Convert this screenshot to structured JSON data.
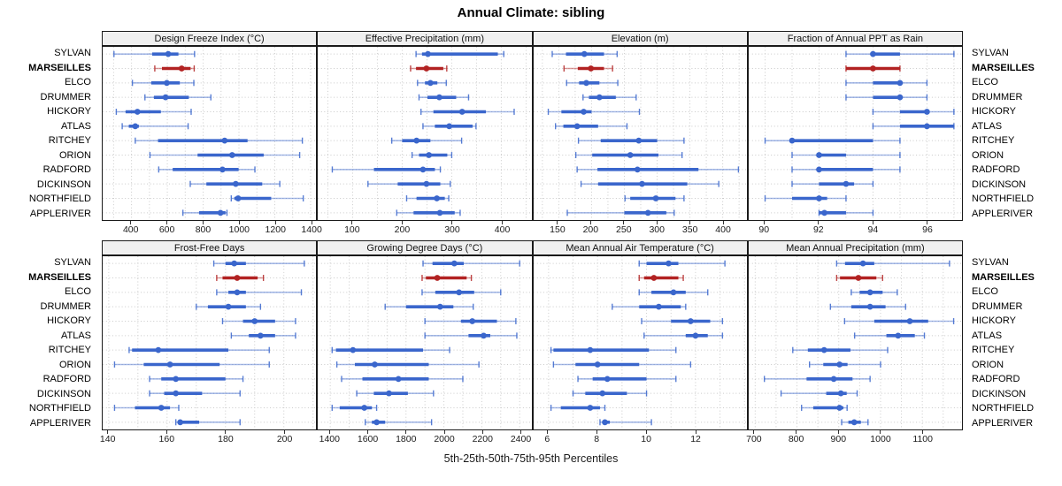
{
  "title": "Annual Climate: sibling",
  "caption": "5th-25th-50th-75th-95th Percentiles",
  "colors": {
    "series": "#3A66CC",
    "highlight": "#B22222",
    "grid": "#C9C9C9",
    "strip_bg": "#F0F0F0",
    "border": "#1A1A1A",
    "tick_text": "#1A1A1A"
  },
  "chart_data": {
    "type": "scatter",
    "style": "horizontal-percentile-dotplot",
    "percentiles": [
      5,
      25,
      50,
      75,
      95
    ],
    "legend": "5th-25th-50th-75th-95th Percentiles",
    "sites": [
      "SYLVAN",
      "MARSEILLES",
      "ELCO",
      "DRUMMER",
      "HICKORY",
      "ATLAS",
      "RITCHEY",
      "ORION",
      "RADFORD",
      "DICKINSON",
      "NORTHFIELD",
      "APPLERIVER"
    ],
    "highlight_site": "MARSEILLES",
    "panels": [
      {
        "title": "Design Freeze Index (°C)",
        "row": 0,
        "col": 0,
        "xlim": [
          240,
          1430
        ],
        "ticks": [
          400,
          600,
          800,
          1000,
          1200,
          1400
        ],
        "grid_step": 100,
        "values": [
          [
            302,
            515,
            605,
            662,
            752
          ],
          [
            530,
            570,
            680,
            730,
            750
          ],
          [
            405,
            510,
            597,
            670,
            748
          ],
          [
            475,
            525,
            590,
            720,
            843
          ],
          [
            315,
            367,
            433,
            564,
            733
          ],
          [
            348,
            385,
            421,
            441,
            716
          ],
          [
            421,
            548,
            920,
            1048,
            1354
          ],
          [
            503,
            769,
            962,
            1138,
            1339
          ],
          [
            552,
            630,
            908,
            998,
            1089
          ],
          [
            728,
            818,
            982,
            1130,
            1228
          ],
          [
            957,
            974,
            995,
            1180,
            1359
          ],
          [
            687,
            777,
            897,
            925,
            933
          ]
        ]
      },
      {
        "title": "Effective Precipitation (mm)",
        "row": 0,
        "col": 1,
        "xlim": [
          30,
          460
        ],
        "ticks": [
          100,
          200,
          300,
          400
        ],
        "grid_step": 50,
        "values": [
          [
            228,
            240,
            252,
            393,
            405
          ],
          [
            217,
            228,
            249,
            283,
            290
          ],
          [
            231,
            246,
            257,
            271,
            289
          ],
          [
            234,
            251,
            275,
            309,
            334
          ],
          [
            238,
            263,
            321,
            369,
            426
          ],
          [
            242,
            266,
            295,
            342,
            349
          ],
          [
            179,
            200,
            229,
            257,
            320
          ],
          [
            220,
            234,
            254,
            291,
            300
          ],
          [
            59,
            143,
            242,
            266,
            277
          ],
          [
            131,
            191,
            249,
            277,
            297
          ],
          [
            209,
            229,
            270,
            286,
            294
          ],
          [
            189,
            223,
            276,
            306,
            317
          ]
        ]
      },
      {
        "title": "Elevation (m)",
        "row": 0,
        "col": 2,
        "xlim": [
          112,
          437
        ],
        "ticks": [
          150,
          200,
          250,
          300,
          350,
          400
        ],
        "grid_step": 25,
        "values": [
          [
            140,
            161,
            189,
            219,
            239
          ],
          [
            158,
            179,
            199,
            219,
            232
          ],
          [
            162,
            181,
            192,
            212,
            240
          ],
          [
            187,
            196,
            212,
            237,
            268
          ],
          [
            134,
            154,
            188,
            200,
            273
          ],
          [
            145,
            157,
            178,
            210,
            254
          ],
          [
            180,
            214,
            272,
            300,
            341
          ],
          [
            176,
            201,
            259,
            302,
            338
          ],
          [
            178,
            209,
            270,
            363,
            424
          ],
          [
            184,
            210,
            277,
            346,
            394
          ],
          [
            251,
            259,
            298,
            328,
            341
          ],
          [
            163,
            250,
            286,
            314,
            326
          ]
        ]
      },
      {
        "title": "Fraction of Annual PPT as Rain",
        "row": 0,
        "col": 3,
        "xlim": [
          89.4,
          97.3
        ],
        "ticks": [
          90,
          92,
          94,
          96
        ],
        "grid_step": 1,
        "values": [
          [
            93,
            94,
            94,
            95,
            97
          ],
          [
            93,
            93,
            94,
            95,
            95
          ],
          [
            93,
            94,
            95,
            95,
            96
          ],
          [
            93,
            94,
            95,
            95,
            96
          ],
          [
            94,
            95,
            96,
            96,
            97
          ],
          [
            94,
            95,
            96,
            97,
            97
          ],
          [
            90,
            91,
            91,
            94,
            95
          ],
          [
            91,
            92,
            92,
            93,
            95
          ],
          [
            91,
            92,
            92,
            94,
            95
          ],
          [
            91,
            92,
            93,
            93.3,
            94
          ],
          [
            90,
            91,
            92,
            92.3,
            93
          ],
          [
            92,
            92,
            92.2,
            93,
            94
          ]
        ]
      },
      {
        "title": "Frost-Free Days",
        "row": 1,
        "col": 0,
        "xlim": [
          138,
          211
        ],
        "ticks": [
          140,
          160,
          180,
          200
        ],
        "grid_step": 10,
        "values": [
          [
            176,
            180,
            183,
            187,
            207
          ],
          [
            177,
            179,
            184,
            191,
            193
          ],
          [
            177,
            181,
            184,
            187,
            206
          ],
          [
            170,
            174,
            181,
            187,
            192
          ],
          [
            179,
            186,
            190,
            197,
            204
          ],
          [
            182,
            188,
            192,
            197,
            204
          ],
          [
            147,
            148,
            157,
            181,
            195
          ],
          [
            142,
            152,
            161,
            178,
            195
          ],
          [
            154,
            158,
            163,
            180,
            186
          ],
          [
            154,
            159,
            163,
            172,
            185
          ],
          [
            142,
            149,
            158,
            161,
            164
          ],
          [
            163,
            164,
            164.5,
            171,
            185
          ]
        ]
      },
      {
        "title": "Growing Degree Days (°C)",
        "row": 1,
        "col": 1,
        "xlim": [
          1335,
          2460
        ],
        "ticks": [
          1400,
          1600,
          1800,
          2000,
          2200,
          2400
        ],
        "grid_step": 100,
        "values": [
          [
            1890,
            1940,
            2055,
            2105,
            2400
          ],
          [
            1885,
            1905,
            1965,
            2120,
            2145
          ],
          [
            1885,
            1955,
            2080,
            2160,
            2300
          ],
          [
            1690,
            1800,
            1980,
            2050,
            2155
          ],
          [
            1900,
            2090,
            2150,
            2280,
            2380
          ],
          [
            1900,
            2130,
            2210,
            2245,
            2385
          ],
          [
            1410,
            1430,
            1520,
            1890,
            2030
          ],
          [
            1435,
            1530,
            1635,
            1920,
            2185
          ],
          [
            1460,
            1570,
            1760,
            1920,
            2100
          ],
          [
            1540,
            1630,
            1710,
            1810,
            1945
          ],
          [
            1410,
            1450,
            1580,
            1620,
            1645
          ],
          [
            1585,
            1620,
            1645,
            1690,
            1935
          ]
        ]
      },
      {
        "title": "Mean Annual Air Temperature (°C)",
        "row": 1,
        "col": 2,
        "xlim": [
          5.4,
          14.1
        ],
        "ticks": [
          6,
          8,
          10,
          12
        ],
        "grid_step": 1,
        "values": [
          [
            9.7,
            10.0,
            10.9,
            11.3,
            13.2
          ],
          [
            9.7,
            9.9,
            10.3,
            11.3,
            11.5
          ],
          [
            9.7,
            10.2,
            11.1,
            11.6,
            12.5
          ],
          [
            8.6,
            9.7,
            10.5,
            11.4,
            11.6
          ],
          [
            9.8,
            11.0,
            11.8,
            12.6,
            13.1
          ],
          [
            9.9,
            11.6,
            12.0,
            12.5,
            13.1
          ],
          [
            6.1,
            6.2,
            7.7,
            10.1,
            11.2
          ],
          [
            6.2,
            7.1,
            8.0,
            9.7,
            11.8
          ],
          [
            7.2,
            7.8,
            8.4,
            10.0,
            11.2
          ],
          [
            7.0,
            7.5,
            8.2,
            9.2,
            10.0
          ],
          [
            6.1,
            6.5,
            7.7,
            8.1,
            8.3
          ],
          [
            8.1,
            8.2,
            8.3,
            8.5,
            10.2
          ]
        ]
      },
      {
        "title": "Mean Annual Precipitation (mm)",
        "row": 1,
        "col": 3,
        "xlim": [
          685,
          1195
        ],
        "ticks": [
          700,
          800,
          900,
          1000,
          1100
        ],
        "grid_step": 50,
        "values": [
          [
            895,
            915,
            958,
            985,
            1165
          ],
          [
            895,
            903,
            947,
            990,
            1005
          ],
          [
            930,
            950,
            975,
            1005,
            1040
          ],
          [
            880,
            930,
            975,
            1012,
            1060
          ],
          [
            914,
            985,
            1070,
            1114,
            1175
          ],
          [
            938,
            1014,
            1042,
            1082,
            1105
          ],
          [
            790,
            826,
            865,
            928,
            1017
          ],
          [
            830,
            863,
            902,
            921,
            1000
          ],
          [
            722,
            823,
            888,
            933,
            975
          ],
          [
            762,
            870,
            905,
            919,
            944
          ],
          [
            811,
            839,
            902,
            911,
            920
          ],
          [
            907,
            923,
            937,
            953,
            970
          ]
        ]
      }
    ]
  }
}
